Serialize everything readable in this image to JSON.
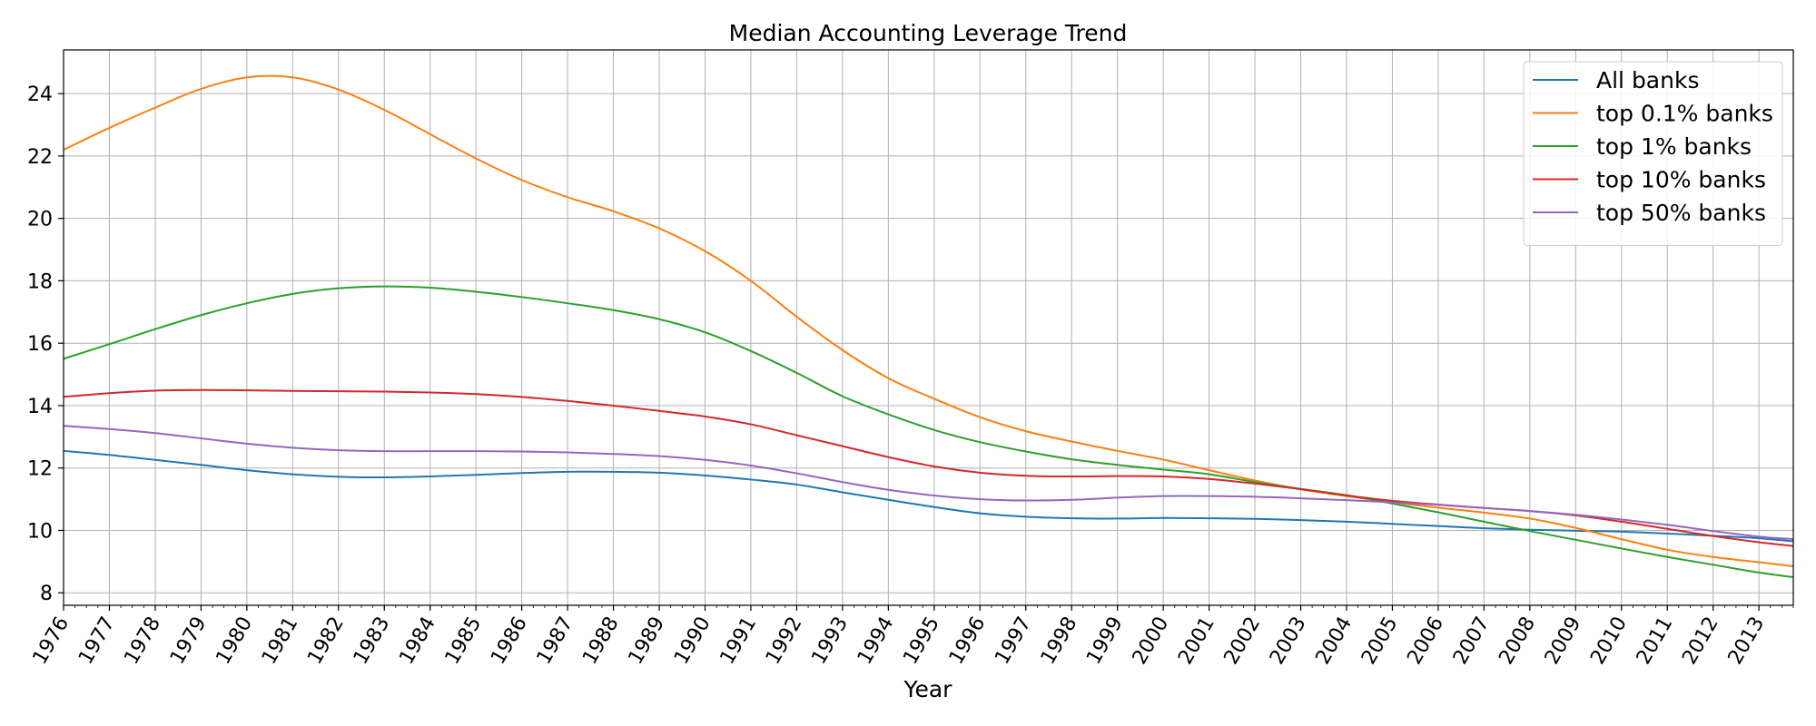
{
  "chart_data": {
    "type": "line",
    "title": "Median Accounting Leverage Trend",
    "xlabel": "Year",
    "ylabel": "",
    "xlim": [
      1976,
      2013.75
    ],
    "ylim": [
      7.6,
      25.4
    ],
    "grid": true,
    "legend_position": "top-right",
    "x_ticks": [
      "1976",
      "1977",
      "1978",
      "1979",
      "1980",
      "1981",
      "1982",
      "1983",
      "1984",
      "1985",
      "1986",
      "1987",
      "1988",
      "1989",
      "1990",
      "1991",
      "1992",
      "1993",
      "1994",
      "1995",
      "1996",
      "1997",
      "1998",
      "1999",
      "2000",
      "2001",
      "2002",
      "2003",
      "2004",
      "2005",
      "2006",
      "2007",
      "2008",
      "2009",
      "2010",
      "2011",
      "2012",
      "2013"
    ],
    "y_ticks": [
      "8",
      "10",
      "12",
      "14",
      "16",
      "18",
      "20",
      "22",
      "24"
    ],
    "x": [
      1976,
      1977,
      1978,
      1979,
      1980,
      1981,
      1982,
      1983,
      1984,
      1985,
      1986,
      1987,
      1988,
      1989,
      1990,
      1991,
      1992,
      1993,
      1994,
      1995,
      1996,
      1997,
      1998,
      1999,
      2000,
      2001,
      2002,
      2003,
      2004,
      2005,
      2006,
      2007,
      2008,
      2009,
      2010,
      2011,
      2012,
      2013,
      2013.75
    ],
    "series": [
      {
        "name": "All banks",
        "color": "#1f77b4",
        "values": [
          12.55,
          12.42,
          12.26,
          12.1,
          11.93,
          11.8,
          11.72,
          11.7,
          11.73,
          11.78,
          11.84,
          11.88,
          11.88,
          11.85,
          11.76,
          11.63,
          11.47,
          11.22,
          10.98,
          10.75,
          10.55,
          10.44,
          10.39,
          10.38,
          10.4,
          10.39,
          10.37,
          10.33,
          10.28,
          10.21,
          10.14,
          10.07,
          10.02,
          9.99,
          9.96,
          9.9,
          9.83,
          9.75,
          9.65
        ]
      },
      {
        "name": "top 0.1% banks",
        "color": "#ff7f0e",
        "values": [
          22.2,
          22.9,
          23.55,
          24.15,
          24.52,
          24.52,
          24.13,
          23.48,
          22.7,
          21.92,
          21.23,
          20.68,
          20.23,
          19.68,
          18.95,
          18.0,
          16.85,
          15.78,
          14.88,
          14.22,
          13.63,
          13.18,
          12.85,
          12.55,
          12.27,
          11.93,
          11.6,
          11.32,
          11.1,
          10.9,
          10.73,
          10.57,
          10.38,
          10.08,
          9.72,
          9.38,
          9.15,
          8.98,
          8.85
        ]
      },
      {
        "name": "top 1% banks",
        "color": "#2ca02c",
        "values": [
          15.5,
          15.97,
          16.45,
          16.9,
          17.28,
          17.58,
          17.76,
          17.82,
          17.78,
          17.65,
          17.48,
          17.28,
          17.06,
          16.77,
          16.35,
          15.75,
          15.05,
          14.3,
          13.72,
          13.22,
          12.83,
          12.53,
          12.28,
          12.1,
          11.95,
          11.8,
          11.55,
          11.33,
          11.13,
          10.86,
          10.58,
          10.28,
          9.98,
          9.7,
          9.42,
          9.15,
          8.9,
          8.65,
          8.5
        ]
      },
      {
        "name": "top 10% banks",
        "color": "#d62728",
        "values": [
          14.28,
          14.4,
          14.48,
          14.5,
          14.49,
          14.47,
          14.46,
          14.45,
          14.42,
          14.37,
          14.28,
          14.15,
          14.0,
          13.83,
          13.65,
          13.4,
          13.05,
          12.7,
          12.35,
          12.05,
          11.85,
          11.75,
          11.73,
          11.74,
          11.73,
          11.65,
          11.5,
          11.32,
          11.12,
          10.95,
          10.83,
          10.72,
          10.62,
          10.48,
          10.28,
          10.05,
          9.82,
          9.62,
          9.5
        ]
      },
      {
        "name": "top 50% banks",
        "color": "#9467bd",
        "values": [
          13.35,
          13.25,
          13.12,
          12.95,
          12.78,
          12.65,
          12.57,
          12.54,
          12.54,
          12.54,
          12.53,
          12.5,
          12.45,
          12.38,
          12.26,
          12.08,
          11.83,
          11.55,
          11.3,
          11.12,
          11.0,
          10.96,
          10.98,
          11.05,
          11.1,
          11.1,
          11.08,
          11.03,
          10.97,
          10.9,
          10.82,
          10.72,
          10.62,
          10.5,
          10.35,
          10.18,
          9.98,
          9.8,
          9.72
        ]
      }
    ]
  }
}
